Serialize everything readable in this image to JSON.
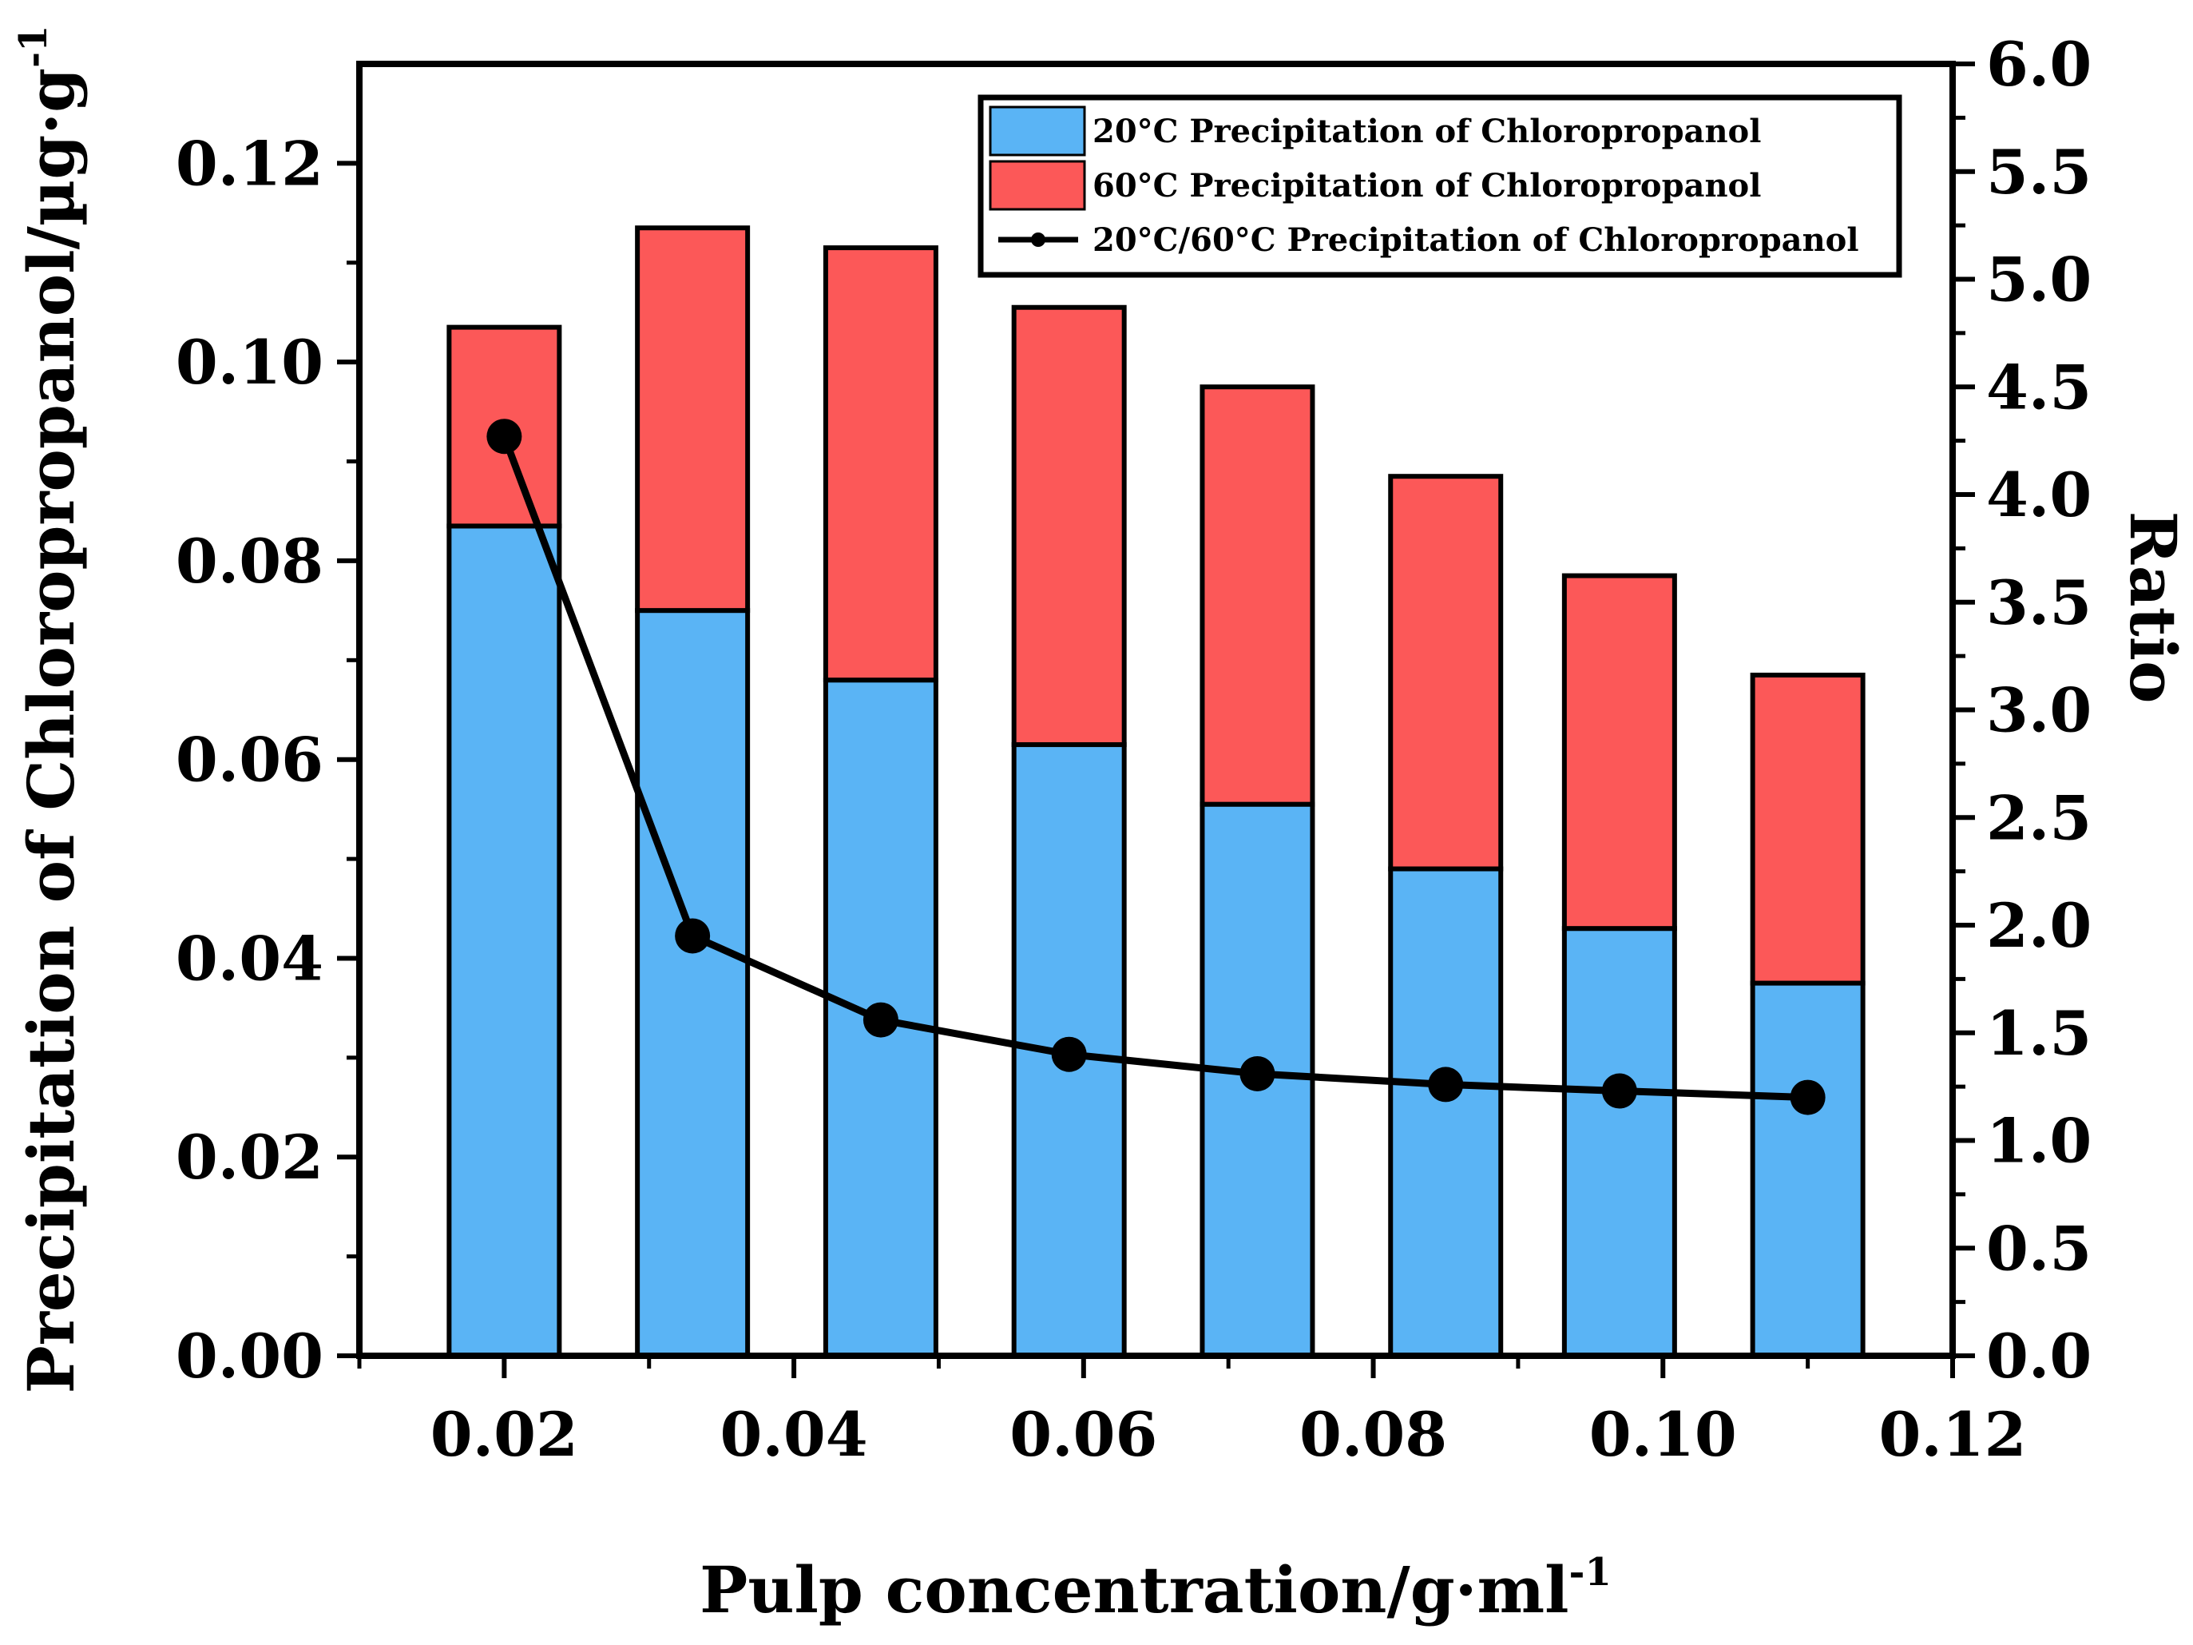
{
  "chart_data": {
    "type": "bar",
    "stacked": true,
    "categories": [
      "0.02",
      "0.033",
      "0.046",
      "0.059",
      "0.072",
      "0.085",
      "0.097",
      "0.11"
    ],
    "x": [
      0.02,
      0.033,
      0.046,
      0.059,
      0.072,
      0.085,
      0.097,
      0.11
    ],
    "xlabel": "Pulp concentration/g·ml",
    "xlabel_sup": "-1",
    "ylabel": "Precipitation of Chloropropanol/µg·g",
    "ylabel_sup": "-1",
    "y2label": "Ratio",
    "xlim": [
      0.01,
      0.12
    ],
    "ylim": [
      0,
      0.13
    ],
    "y2lim": [
      0,
      6.0
    ],
    "xticks": [
      "0.02",
      "0.04",
      "0.06",
      "0.08",
      "0.10",
      "0.12"
    ],
    "yticks": [
      "0.00",
      "0.02",
      "0.04",
      "0.06",
      "0.08",
      "0.10",
      "0.12"
    ],
    "y2ticks": [
      "0.0",
      "0.5",
      "1.0",
      "1.5",
      "2.0",
      "2.5",
      "3.0",
      "3.5",
      "4.0",
      "4.5",
      "5.0",
      "5.5",
      "6.0"
    ],
    "series": [
      {
        "name": "20°C Precipitation of Chloropropanol",
        "type": "bar",
        "axis": "left",
        "color": "#5ab4f5",
        "values": [
          0.0835,
          0.075,
          0.068,
          0.0615,
          0.0555,
          0.049,
          0.043,
          0.0375
        ]
      },
      {
        "name": "60°C Precipitation of Chloropropanol",
        "type": "bar",
        "axis": "left",
        "color": "#fc5858",
        "values": [
          0.02,
          0.0385,
          0.0435,
          0.044,
          0.042,
          0.0395,
          0.0355,
          0.031
        ]
      },
      {
        "name": "20°C/60°C Precipitation of Chloropropanol",
        "type": "line",
        "axis": "right",
        "color": "#000000",
        "values": [
          4.27,
          1.95,
          1.56,
          1.4,
          1.31,
          1.26,
          1.23,
          1.2
        ]
      }
    ],
    "legend_position": "top-right"
  }
}
